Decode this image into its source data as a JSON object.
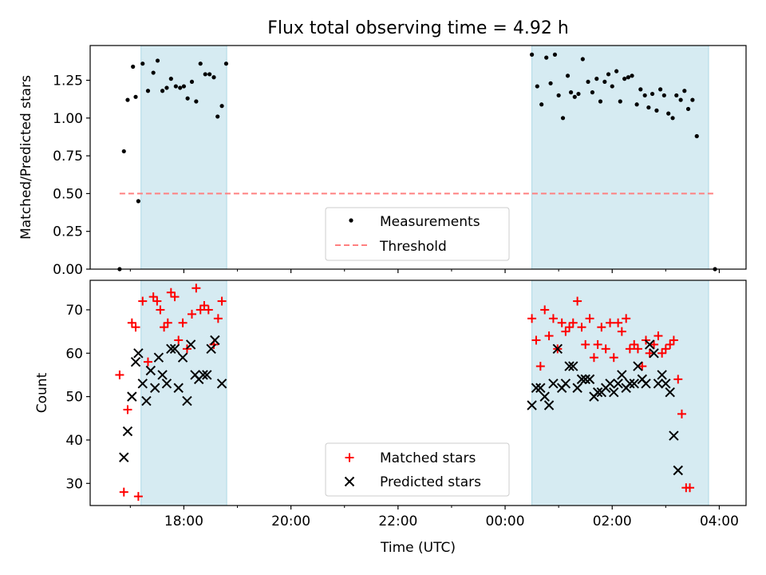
{
  "chart_data": [
    {
      "type": "scatter",
      "title": "Flux total observing time = 4.92 h",
      "ylabel": "Matched/Predicted stars",
      "xlabel": "",
      "xlim_hours": [
        16.25,
        28.5
      ],
      "ylim": [
        0,
        1.48
      ],
      "yticks": [
        0.0,
        0.25,
        0.5,
        0.75,
        1.0,
        1.25
      ],
      "ytick_labels": [
        "0.00",
        "0.25",
        "0.50",
        "0.75",
        "1.00",
        "1.25"
      ],
      "shaded_intervals_hours": [
        [
          17.2,
          18.8
        ],
        [
          24.5,
          27.8
        ]
      ],
      "threshold": {
        "name": "Threshold",
        "value": 0.5,
        "x_range_hours": [
          16.8,
          27.9
        ],
        "color": "#ff8080"
      },
      "legend": {
        "position": "bottom-center",
        "entries": [
          "Measurements",
          "Threshold"
        ]
      },
      "series": [
        {
          "name": "Measurements",
          "color": "#000000",
          "marker": "dot",
          "points": [
            [
              16.8,
              0.0
            ],
            [
              16.88,
              0.78
            ],
            [
              16.95,
              1.12
            ],
            [
              17.05,
              1.34
            ],
            [
              17.1,
              1.14
            ],
            [
              17.15,
              0.45
            ],
            [
              17.23,
              1.36
            ],
            [
              17.33,
              1.18
            ],
            [
              17.43,
              1.3
            ],
            [
              17.51,
              1.38
            ],
            [
              17.6,
              1.18
            ],
            [
              17.68,
              1.2
            ],
            [
              17.76,
              1.26
            ],
            [
              17.85,
              1.21
            ],
            [
              17.93,
              1.2
            ],
            [
              18.0,
              1.21
            ],
            [
              18.07,
              1.13
            ],
            [
              18.15,
              1.24
            ],
            [
              18.23,
              1.11
            ],
            [
              18.31,
              1.36
            ],
            [
              18.4,
              1.29
            ],
            [
              18.48,
              1.29
            ],
            [
              18.56,
              1.27
            ],
            [
              18.63,
              1.01
            ],
            [
              18.71,
              1.08
            ],
            [
              18.79,
              1.36
            ],
            [
              24.5,
              1.42
            ],
            [
              24.6,
              1.21
            ],
            [
              24.68,
              1.09
            ],
            [
              24.77,
              1.4
            ],
            [
              24.85,
              1.23
            ],
            [
              24.93,
              1.42
            ],
            [
              25.0,
              1.15
            ],
            [
              25.08,
              1.0
            ],
            [
              25.17,
              1.28
            ],
            [
              25.23,
              1.17
            ],
            [
              25.3,
              1.14
            ],
            [
              25.37,
              1.16
            ],
            [
              25.45,
              1.39
            ],
            [
              25.55,
              1.24
            ],
            [
              25.63,
              1.17
            ],
            [
              25.71,
              1.26
            ],
            [
              25.78,
              1.11
            ],
            [
              25.86,
              1.24
            ],
            [
              25.93,
              1.29
            ],
            [
              26.0,
              1.21
            ],
            [
              26.08,
              1.31
            ],
            [
              26.15,
              1.11
            ],
            [
              26.23,
              1.26
            ],
            [
              26.3,
              1.27
            ],
            [
              26.37,
              1.28
            ],
            [
              26.46,
              1.09
            ],
            [
              26.53,
              1.19
            ],
            [
              26.61,
              1.15
            ],
            [
              26.68,
              1.07
            ],
            [
              26.75,
              1.16
            ],
            [
              26.83,
              1.05
            ],
            [
              26.9,
              1.19
            ],
            [
              26.97,
              1.15
            ],
            [
              27.05,
              1.03
            ],
            [
              27.13,
              1.0
            ],
            [
              27.2,
              1.15
            ],
            [
              27.28,
              1.12
            ],
            [
              27.35,
              1.18
            ],
            [
              27.42,
              1.06
            ],
            [
              27.5,
              1.12
            ],
            [
              27.58,
              0.88
            ],
            [
              27.92,
              0.0
            ]
          ]
        }
      ]
    },
    {
      "type": "scatter",
      "title": "",
      "ylabel": "Count",
      "xlabel": "Time (UTC)",
      "xlim_hours": [
        16.25,
        28.5
      ],
      "ylim": [
        24.9,
        76.8
      ],
      "yticks": [
        30,
        40,
        50,
        60,
        70
      ],
      "ytick_labels": [
        "30",
        "40",
        "50",
        "60",
        "70"
      ],
      "xticks_hours": [
        18,
        20,
        22,
        24,
        26,
        28
      ],
      "xtick_labels": [
        "18:00",
        "20:00",
        "22:00",
        "00:00",
        "02:00",
        "04:00"
      ],
      "minor_xticks_hours": [
        17,
        19,
        21,
        23,
        25,
        27
      ],
      "shaded_intervals_hours": [
        [
          17.2,
          18.8
        ],
        [
          24.5,
          27.8
        ]
      ],
      "legend": {
        "position": "bottom-center",
        "entries": [
          "Matched stars",
          "Predicted stars"
        ]
      },
      "series": [
        {
          "name": "Matched stars",
          "color": "#ff0000",
          "marker": "plus",
          "points": [
            [
              16.8,
              55
            ],
            [
              16.88,
              28
            ],
            [
              16.95,
              47
            ],
            [
              17.03,
              67
            ],
            [
              17.1,
              66
            ],
            [
              17.15,
              27
            ],
            [
              17.23,
              72
            ],
            [
              17.33,
              58
            ],
            [
              17.43,
              73
            ],
            [
              17.5,
              72
            ],
            [
              17.56,
              70
            ],
            [
              17.63,
              66
            ],
            [
              17.7,
              67
            ],
            [
              17.76,
              74
            ],
            [
              17.83,
              73
            ],
            [
              17.9,
              63
            ],
            [
              17.98,
              67
            ],
            [
              18.06,
              61
            ],
            [
              18.15,
              69
            ],
            [
              18.23,
              75
            ],
            [
              18.31,
              70
            ],
            [
              18.38,
              71
            ],
            [
              18.46,
              70
            ],
            [
              18.56,
              62
            ],
            [
              18.64,
              68
            ],
            [
              18.71,
              72
            ],
            [
              24.5,
              68
            ],
            [
              24.58,
              63
            ],
            [
              24.66,
              57
            ],
            [
              24.74,
              70
            ],
            [
              24.82,
              64
            ],
            [
              24.9,
              68
            ],
            [
              24.98,
              61
            ],
            [
              25.06,
              67
            ],
            [
              25.13,
              65
            ],
            [
              25.2,
              66
            ],
            [
              25.27,
              67
            ],
            [
              25.35,
              72
            ],
            [
              25.43,
              66
            ],
            [
              25.5,
              62
            ],
            [
              25.58,
              68
            ],
            [
              25.66,
              59
            ],
            [
              25.73,
              62
            ],
            [
              25.8,
              66
            ],
            [
              25.88,
              61
            ],
            [
              25.96,
              67
            ],
            [
              26.03,
              59
            ],
            [
              26.11,
              67
            ],
            [
              26.18,
              65
            ],
            [
              26.26,
              68
            ],
            [
              26.33,
              61
            ],
            [
              26.41,
              62
            ],
            [
              26.48,
              61
            ],
            [
              26.56,
              57
            ],
            [
              26.63,
              63
            ],
            [
              26.7,
              60
            ],
            [
              26.78,
              62
            ],
            [
              26.86,
              64
            ],
            [
              26.93,
              60
            ],
            [
              27.0,
              61
            ],
            [
              27.08,
              62
            ],
            [
              27.15,
              63
            ],
            [
              27.23,
              54
            ],
            [
              27.3,
              46
            ],
            [
              27.38,
              29
            ],
            [
              27.45,
              29
            ]
          ]
        },
        {
          "name": "Predicted stars",
          "color": "#000000",
          "marker": "x",
          "points": [
            [
              16.88,
              36
            ],
            [
              16.95,
              42
            ],
            [
              17.03,
              50
            ],
            [
              17.1,
              58
            ],
            [
              17.15,
              60
            ],
            [
              17.23,
              53
            ],
            [
              17.3,
              49
            ],
            [
              17.38,
              56
            ],
            [
              17.46,
              52
            ],
            [
              17.53,
              59
            ],
            [
              17.6,
              55
            ],
            [
              17.68,
              53
            ],
            [
              17.76,
              61
            ],
            [
              17.83,
              61
            ],
            [
              17.9,
              52
            ],
            [
              17.98,
              59
            ],
            [
              18.06,
              49
            ],
            [
              18.13,
              62
            ],
            [
              18.21,
              55
            ],
            [
              18.28,
              54
            ],
            [
              18.36,
              55
            ],
            [
              18.43,
              55
            ],
            [
              18.51,
              61
            ],
            [
              18.58,
              63
            ],
            [
              18.71,
              53
            ],
            [
              24.5,
              48
            ],
            [
              24.58,
              52
            ],
            [
              24.66,
              52
            ],
            [
              24.74,
              50
            ],
            [
              24.82,
              48
            ],
            [
              24.9,
              53
            ],
            [
              24.98,
              61
            ],
            [
              25.06,
              52
            ],
            [
              25.13,
              53
            ],
            [
              25.2,
              57
            ],
            [
              25.27,
              57
            ],
            [
              25.35,
              52
            ],
            [
              25.43,
              54
            ],
            [
              25.5,
              54
            ],
            [
              25.58,
              54
            ],
            [
              25.66,
              50
            ],
            [
              25.73,
              51
            ],
            [
              25.8,
              51
            ],
            [
              25.88,
              52
            ],
            [
              25.96,
              53
            ],
            [
              26.03,
              51
            ],
            [
              26.11,
              53
            ],
            [
              26.18,
              55
            ],
            [
              26.26,
              52
            ],
            [
              26.33,
              53
            ],
            [
              26.41,
              53
            ],
            [
              26.48,
              57
            ],
            [
              26.56,
              54
            ],
            [
              26.63,
              53
            ],
            [
              26.7,
              62
            ],
            [
              26.78,
              60
            ],
            [
              26.86,
              53
            ],
            [
              26.93,
              55
            ],
            [
              27.0,
              53
            ],
            [
              27.08,
              51
            ],
            [
              27.15,
              41
            ],
            [
              27.23,
              33
            ]
          ]
        }
      ]
    }
  ]
}
